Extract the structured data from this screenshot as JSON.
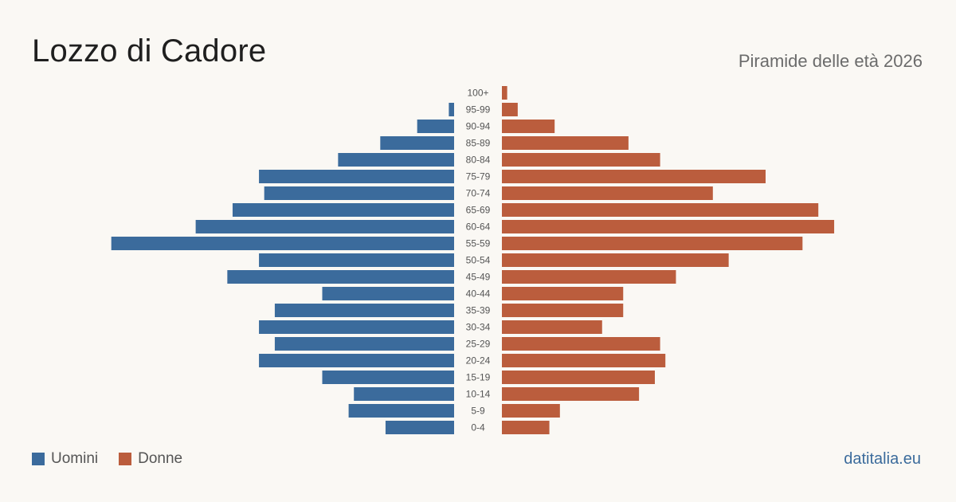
{
  "header": {
    "title": "Lozzo di Cadore",
    "subtitle": "Piramide delle età 2026"
  },
  "legend": {
    "men_label": "Uomini",
    "women_label": "Donne"
  },
  "footer": {
    "brand": "datitalia.eu"
  },
  "colors": {
    "men": "#3b6b9c",
    "women": "#bb5d3d",
    "background": "#faf8f4"
  },
  "chart_data": {
    "type": "bar",
    "orientation": "horizontal-pyramid",
    "categories": [
      "100+",
      "95-99",
      "90-94",
      "85-89",
      "80-84",
      "75-79",
      "70-74",
      "65-69",
      "60-64",
      "55-59",
      "50-54",
      "45-49",
      "40-44",
      "35-39",
      "30-34",
      "25-29",
      "20-24",
      "15-19",
      "10-14",
      "5-9",
      "0-4"
    ],
    "series": [
      {
        "name": "Uomini",
        "values": [
          0,
          1,
          7,
          14,
          22,
          37,
          36,
          42,
          49,
          65,
          37,
          43,
          25,
          34,
          37,
          34,
          37,
          25,
          19,
          20,
          13
        ]
      },
      {
        "name": "Donne",
        "values": [
          1,
          3,
          10,
          24,
          30,
          50,
          40,
          60,
          63,
          57,
          43,
          33,
          23,
          23,
          19,
          30,
          31,
          29,
          26,
          11,
          9
        ]
      }
    ],
    "grid": false,
    "legend_position": "bottom-left"
  }
}
